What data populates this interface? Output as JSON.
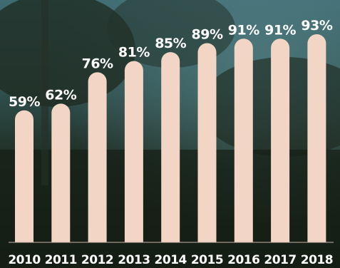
{
  "chart_data": {
    "type": "bar",
    "categories": [
      "2010",
      "2011",
      "2012",
      "2013",
      "2014",
      "2015",
      "2016",
      "2017",
      "2018"
    ],
    "values": [
      59,
      62,
      76,
      81,
      85,
      89,
      91,
      91,
      93
    ],
    "value_labels": [
      "59%",
      "62%",
      "76%",
      "81%",
      "85%",
      "89%",
      "91%",
      "91%",
      "93%"
    ],
    "ylim": [
      0,
      100
    ],
    "grid": false,
    "legend": "none",
    "bar_color": "#f2d5c4"
  }
}
